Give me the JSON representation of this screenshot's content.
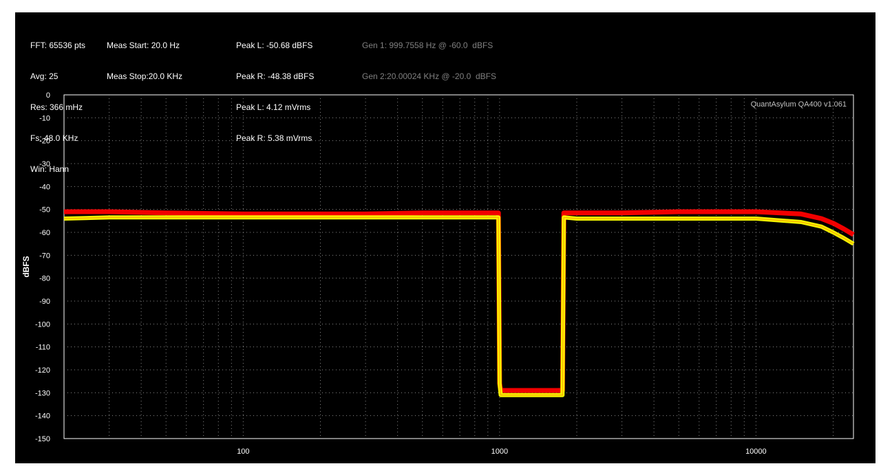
{
  "info": {
    "col1": [
      "FFT: 65536 pts",
      "Avg: 25",
      "Res: 366 mHz",
      "Fs: 48.0 KHz",
      "Win: Hann"
    ],
    "col2": [
      "Meas Start: 20.0 Hz",
      "Meas Stop:20.0 KHz"
    ],
    "col3": [
      "Peak L: -50.68 dBFS",
      "Peak R: -48.38 dBFS",
      "Peak L: 4.12 mVrms",
      "Peak R: 5.38 mVrms"
    ],
    "col4": [
      "Gen 1: 999.7558 Hz @ -60.0  dBFS",
      "Gen 2:20.00024 KHz @ -20.0  dBFS"
    ]
  },
  "watermark": "QuantAsylum QA400 v1.061",
  "colors": {
    "background": "#000000",
    "text": "#ffffff",
    "gen_text": "#808080",
    "grid": "#8a8a8a",
    "left_channel": "#ffff00",
    "right_channel": "#ff0000",
    "overlap": "#ff9a00"
  },
  "chart_data": {
    "type": "line",
    "title": "",
    "xlabel": "",
    "ylabel": "dBFS",
    "x_scale": "log",
    "xlim": [
      20,
      24000
    ],
    "ylim": [
      -150,
      0
    ],
    "grid": true,
    "legend": "none",
    "x_ticks": [
      100,
      1000,
      10000
    ],
    "x_tick_labels": [
      "100",
      "1000",
      "10000"
    ],
    "y_ticks": [
      0,
      -10,
      -20,
      -30,
      -40,
      -50,
      -60,
      -70,
      -80,
      -90,
      -100,
      -110,
      -120,
      -130,
      -140,
      -150
    ],
    "y_tick_labels": [
      "0",
      "-10",
      "-20",
      "-30",
      "-40",
      "-50",
      "-60",
      "-70",
      "-80",
      "-90",
      "-100",
      "-110",
      "-120",
      "-130",
      "-140",
      "-150"
    ],
    "series": [
      {
        "id": "R",
        "color": "#ff0000",
        "x": [
          20,
          30,
          50,
          100,
          200,
          300,
          500,
          700,
          990,
          1000,
          1010,
          1400,
          1700,
          1760,
          1780,
          2000,
          3000,
          5000,
          10000,
          15000,
          18000,
          20000,
          22000,
          24000
        ],
        "y": [
          -51,
          -51,
          -51.5,
          -52,
          -52,
          -52,
          -51.5,
          -51.5,
          -51.5,
          -126,
          -129,
          -129,
          -129,
          -129,
          -51.5,
          -51.5,
          -51.5,
          -51,
          -51,
          -52,
          -54,
          -56,
          -58.5,
          -61
        ]
      },
      {
        "id": "L",
        "color": "#ffff00",
        "x": [
          20,
          30,
          50,
          100,
          200,
          300,
          500,
          700,
          990,
          1000,
          1010,
          1400,
          1700,
          1760,
          1780,
          2000,
          3000,
          5000,
          10000,
          15000,
          18000,
          20000,
          22000,
          24000
        ],
        "y": [
          -54,
          -53.5,
          -53.5,
          -53.5,
          -53.5,
          -53.5,
          -53.5,
          -53.5,
          -53.5,
          -126,
          -131,
          -131,
          -131,
          -131,
          -53.5,
          -54,
          -54,
          -54,
          -54,
          -55.5,
          -57.5,
          -60,
          -62.5,
          -65
        ]
      }
    ]
  }
}
